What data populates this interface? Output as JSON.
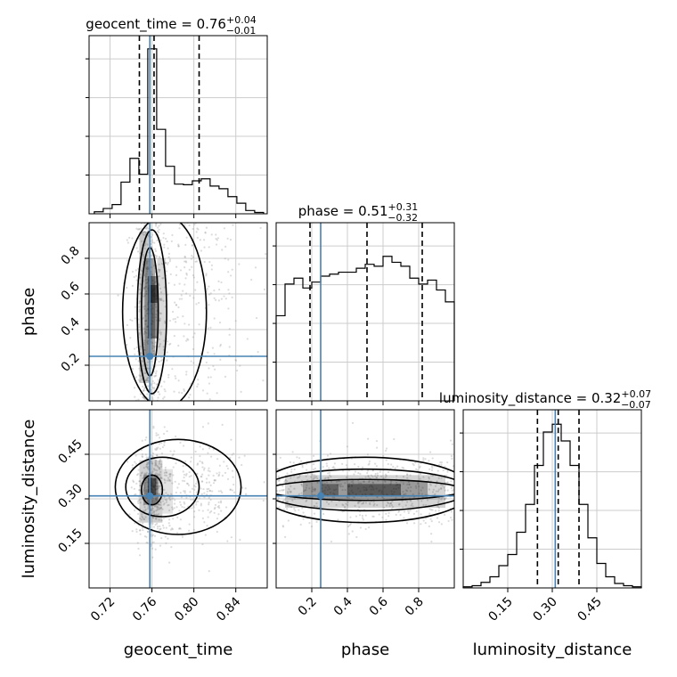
{
  "chart_data": {
    "type": "corner",
    "parameters": [
      "geocent_time",
      "phase",
      "luminosity_distance"
    ],
    "truths": {
      "geocent_time": 0.758,
      "phase": 0.25,
      "luminosity_distance": 0.31
    },
    "colors": {
      "truth": "#4682b4",
      "line": "#000000",
      "grid": "#cccccc",
      "scatter": "#9a9a9a"
    },
    "grid": true,
    "marginals": [
      {
        "param": "geocent_time",
        "title_prefix": "geocent_time = ",
        "median": "0.76",
        "plus": "+0.04",
        "minus": "−0.01",
        "quantiles": [
          0.748,
          0.762,
          0.805
        ],
        "range": [
          0.7,
          0.87
        ],
        "ticks": [
          0.72,
          0.76,
          0.8,
          0.84
        ],
        "tick_labels": [
          "0.72",
          "0.76",
          "0.80",
          "0.84"
        ],
        "bin_edges": [
          0.705,
          0.7135,
          0.722,
          0.7305,
          0.739,
          0.7475,
          0.756,
          0.7645,
          0.773,
          0.7815,
          0.79,
          0.7985,
          0.807,
          0.8155,
          0.824,
          0.8325,
          0.841,
          0.8495,
          0.858,
          0.8665
        ],
        "counts": [
          0.3,
          0.8,
          1.4,
          4.8,
          8.4,
          6.0,
          25.0,
          12.8,
          7.2,
          4.5,
          4.4,
          5.0,
          5.3,
          4.2,
          3.8,
          2.6,
          1.6,
          0.5,
          0.2
        ],
        "ymax": 27
      },
      {
        "param": "phase",
        "title_prefix": "phase = ",
        "median": "0.51",
        "plus": "+0.31",
        "minus": "−0.32",
        "quantiles": [
          0.19,
          0.51,
          0.82
        ],
        "range": [
          0.0,
          1.0
        ],
        "ticks": [
          0.2,
          0.4,
          0.6,
          0.8
        ],
        "tick_labels": [
          "0.2",
          "0.4",
          "0.6",
          "0.8"
        ],
        "bin_edges": [
          0.0,
          0.05,
          0.1,
          0.15,
          0.2,
          0.25,
          0.3,
          0.35,
          0.4,
          0.45,
          0.5,
          0.55,
          0.6,
          0.65,
          0.7,
          0.75,
          0.8,
          0.85,
          0.9,
          0.95,
          1.0
        ],
        "counts": [
          4.3,
          5.9,
          6.2,
          5.7,
          6.0,
          6.3,
          6.4,
          6.5,
          6.5,
          6.7,
          6.9,
          6.8,
          7.3,
          7.0,
          6.8,
          6.2,
          5.9,
          6.1,
          5.6,
          5.0
        ],
        "ymax": 9
      },
      {
        "param": "luminosity_distance",
        "title_prefix": "luminosity_distance = ",
        "median": "0.32",
        "plus": "+0.07",
        "minus": "−0.07",
        "quantiles": [
          0.25,
          0.32,
          0.39
        ],
        "range": [
          0.0,
          0.6
        ],
        "ticks": [
          0.15,
          0.3,
          0.45
        ],
        "tick_labels": [
          "0.15",
          "0.30",
          "0.45"
        ],
        "bin_edges": [
          0.0,
          0.03,
          0.06,
          0.09,
          0.12,
          0.15,
          0.18,
          0.21,
          0.24,
          0.27,
          0.3,
          0.33,
          0.36,
          0.39,
          0.42,
          0.45,
          0.48,
          0.51,
          0.54,
          0.57,
          0.6
        ],
        "counts": [
          0.1,
          0.2,
          0.5,
          1.0,
          2.0,
          3.0,
          5.0,
          7.5,
          11.0,
          14.0,
          14.7,
          13.2,
          11.0,
          7.5,
          4.5,
          2.2,
          1.0,
          0.4,
          0.2,
          0.1
        ],
        "ymax": 16
      }
    ],
    "joint": [
      {
        "x": "geocent_time",
        "y": "phase",
        "y_ticks": [
          0.2,
          0.4,
          0.6,
          0.8
        ],
        "y_tick_labels": [
          "0.2",
          "0.4",
          "0.6",
          "0.8"
        ],
        "center": [
          0.758,
          0.5
        ],
        "spread": [
          0.022,
          0.29
        ]
      },
      {
        "x": "geocent_time",
        "y": "luminosity_distance",
        "y_ticks": [
          0.15,
          0.3,
          0.45
        ],
        "y_tick_labels": [
          "0.15",
          "0.30",
          "0.45"
        ],
        "center": [
          0.765,
          0.33
        ],
        "spread": [
          0.03,
          0.085
        ]
      },
      {
        "x": "phase",
        "y": "luminosity_distance",
        "center": [
          0.5,
          0.33
        ],
        "spread": [
          0.3,
          0.06
        ]
      }
    ]
  }
}
